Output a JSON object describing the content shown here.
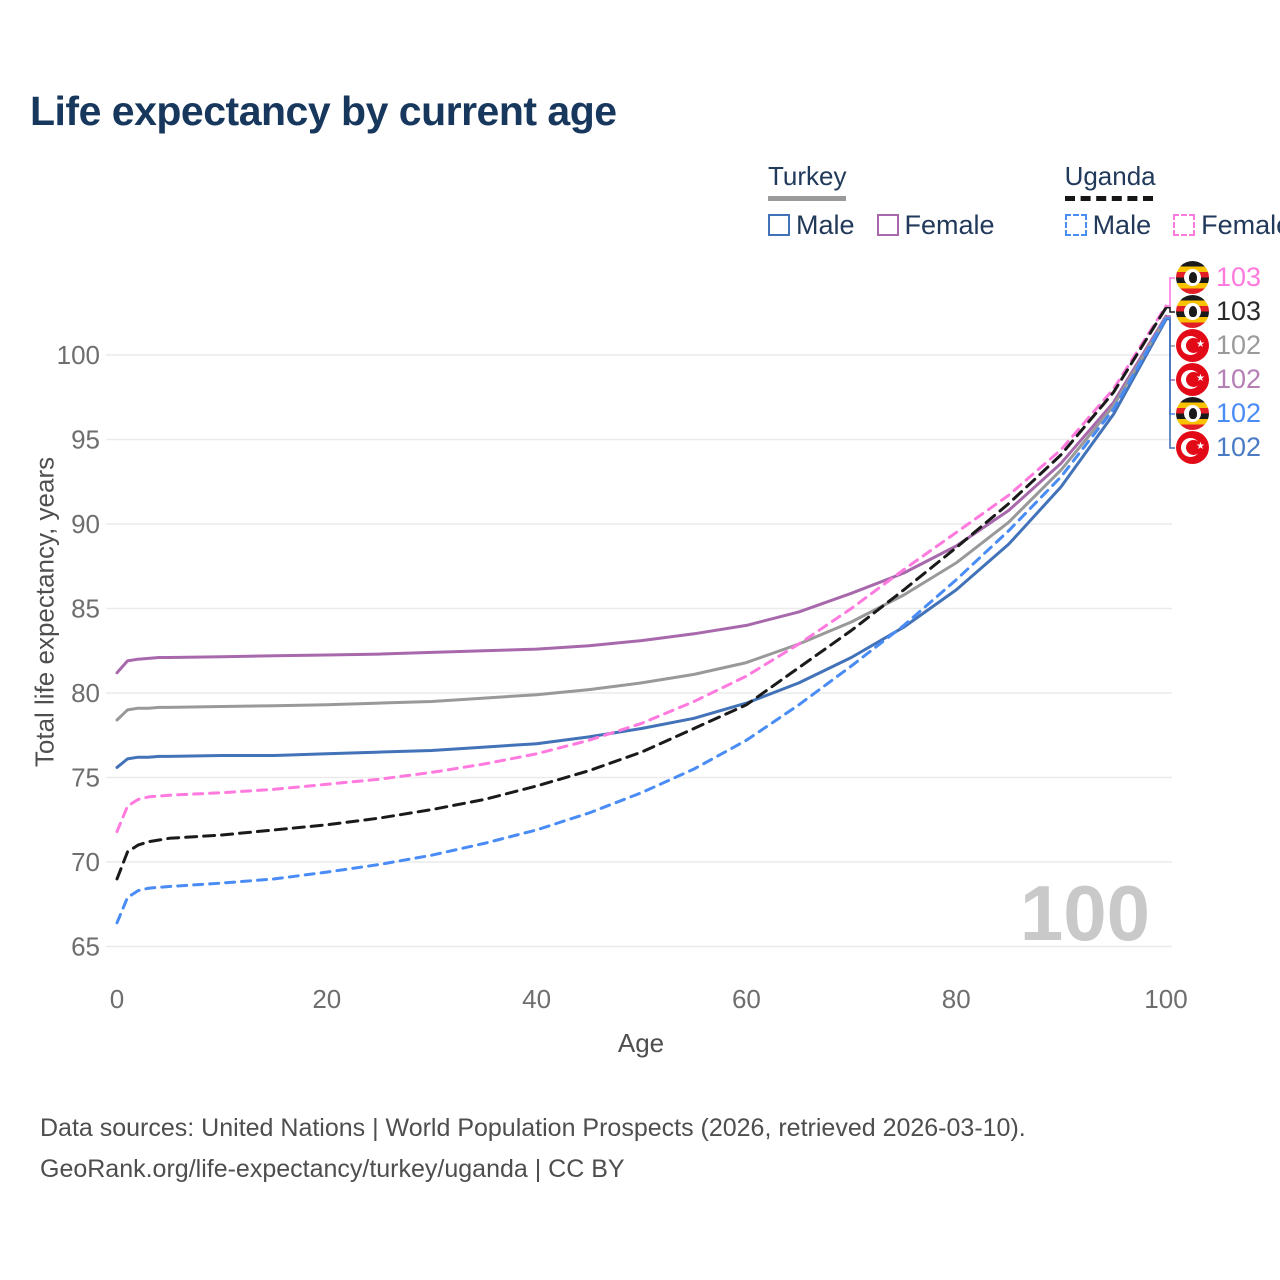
{
  "header": {
    "title": "Life expectancy by current age"
  },
  "legend": {
    "groups": [
      {
        "title": "Turkey",
        "line_style": "solid",
        "line_color": "#9a9a9a",
        "items": [
          {
            "label": "Male",
            "color": "#4272b8",
            "style": "solid"
          },
          {
            "label": "Female",
            "color": "#a869ac",
            "style": "solid"
          }
        ]
      },
      {
        "title": "Uganda",
        "line_style": "dashed",
        "line_color": "#161616",
        "items": [
          {
            "label": "Male",
            "color": "#4a8cf5",
            "style": "dashed"
          },
          {
            "label": "Female",
            "color": "#ff7ade",
            "style": "dashed"
          }
        ]
      }
    ]
  },
  "chart_data": {
    "type": "line",
    "title": "Life expectancy by current age",
    "xlabel": "Age",
    "ylabel": "Total life expectancy, years",
    "xlim": [
      0,
      100
    ],
    "ylim": [
      65,
      103.5
    ],
    "xticks": [
      0,
      20,
      40,
      60,
      80,
      100
    ],
    "yticks": [
      65,
      70,
      75,
      80,
      85,
      90,
      95,
      100
    ],
    "grid": "horizontal",
    "legend_position": "top-right",
    "x": [
      0,
      1,
      2,
      3,
      4,
      5,
      10,
      15,
      20,
      25,
      30,
      35,
      40,
      45,
      50,
      55,
      60,
      65,
      70,
      75,
      80,
      85,
      90,
      95,
      100
    ],
    "series": [
      {
        "key": "turkey_male",
        "name": "Turkey Male",
        "color": "#4272b8",
        "dash": "solid",
        "values": [
          75.6,
          76.1,
          76.2,
          76.2,
          76.25,
          76.25,
          76.3,
          76.3,
          76.4,
          76.5,
          76.6,
          76.8,
          77.0,
          77.4,
          77.9,
          78.5,
          79.4,
          80.6,
          82.1,
          83.9,
          86.1,
          88.8,
          92.2,
          96.5,
          102.1
        ]
      },
      {
        "key": "turkey_female",
        "name": "Turkey Female",
        "color": "#a869ac",
        "dash": "solid",
        "values": [
          81.2,
          81.9,
          82.0,
          82.05,
          82.1,
          82.1,
          82.15,
          82.2,
          82.25,
          82.3,
          82.4,
          82.5,
          82.6,
          82.8,
          83.1,
          83.5,
          84.0,
          84.8,
          85.9,
          87.1,
          88.7,
          90.8,
          93.6,
          97.2,
          102.3
        ]
      },
      {
        "key": "turkey_all",
        "name": "Turkey",
        "color": "#999999",
        "dash": "solid",
        "values": [
          78.4,
          79.0,
          79.1,
          79.1,
          79.15,
          79.15,
          79.2,
          79.25,
          79.3,
          79.4,
          79.5,
          79.7,
          79.9,
          80.2,
          80.6,
          81.1,
          81.8,
          82.9,
          84.2,
          85.8,
          87.7,
          90.1,
          93.2,
          97.0,
          102.2
        ]
      },
      {
        "key": "uganda_male",
        "name": "Uganda Male",
        "color": "#4a8cf5",
        "dash": "dashed",
        "values": [
          66.4,
          67.9,
          68.3,
          68.45,
          68.5,
          68.55,
          68.75,
          69.0,
          69.4,
          69.85,
          70.4,
          71.1,
          71.9,
          72.9,
          74.1,
          75.5,
          77.2,
          79.3,
          81.6,
          84.0,
          86.7,
          89.6,
          92.8,
          96.8,
          102.2
        ]
      },
      {
        "key": "uganda_female",
        "name": "Uganda Female",
        "color": "#ff7ade",
        "dash": "dashed",
        "values": [
          71.8,
          73.3,
          73.7,
          73.85,
          73.9,
          73.95,
          74.1,
          74.3,
          74.6,
          74.9,
          75.3,
          75.8,
          76.4,
          77.2,
          78.2,
          79.5,
          81.0,
          82.9,
          85.0,
          87.3,
          89.5,
          91.7,
          94.4,
          98.0,
          102.9
        ]
      },
      {
        "key": "uganda_all",
        "name": "Uganda",
        "color": "#1a1a1a",
        "dash": "dashed",
        "values": [
          69.0,
          70.6,
          71.0,
          71.2,
          71.3,
          71.4,
          71.6,
          71.9,
          72.2,
          72.6,
          73.1,
          73.7,
          74.5,
          75.4,
          76.5,
          77.9,
          79.3,
          81.5,
          83.7,
          86.1,
          88.6,
          91.2,
          94.1,
          97.8,
          102.8
        ]
      }
    ],
    "end_labels": [
      {
        "flag": "uganda",
        "flag_icon": "uganda-flag-icon",
        "value": "103",
        "color": "#ff7ade",
        "series": "uganda_female"
      },
      {
        "flag": "uganda",
        "flag_icon": "uganda-flag-icon",
        "value": "103",
        "color": "#2b2b2b",
        "series": "uganda_all"
      },
      {
        "flag": "turkey",
        "flag_icon": "turkey-flag-icon",
        "value": "102",
        "color": "#9a9a9a",
        "series": "turkey_all"
      },
      {
        "flag": "turkey",
        "flag_icon": "turkey-flag-icon",
        "value": "102",
        "color": "#b57fb5",
        "series": "turkey_female"
      },
      {
        "flag": "uganda",
        "flag_icon": "uganda-flag-icon",
        "value": "102",
        "color": "#4a8cf5",
        "series": "uganda_male"
      },
      {
        "flag": "turkey",
        "flag_icon": "turkey-flag-icon",
        "value": "102",
        "color": "#4a7bc4",
        "series": "turkey_male"
      }
    ],
    "annotations": {
      "age_counter": "100"
    }
  },
  "colors": {
    "title": "#17375d",
    "grid": "#ebebeb",
    "tick_label": "#6e6e6e",
    "watermark": "#c9c9c9"
  },
  "footer": {
    "line1": "Data sources: United Nations | World Population Prospects (2026, retrieved 2026-03-10).",
    "line2": "GeoRank.org/life-expectancy/turkey/uganda | CC BY"
  }
}
